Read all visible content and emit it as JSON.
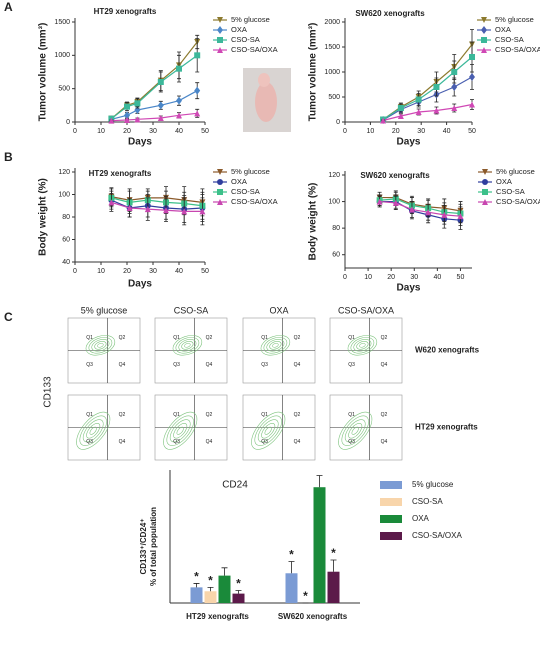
{
  "panel_labels": [
    "A",
    "B",
    "C"
  ],
  "chart_data": [
    {
      "type": "line",
      "title": "HT29 xenografts",
      "xlabel": "Days",
      "ylabel": "Tumor volume (mm³)",
      "xlim": [
        0,
        50
      ],
      "xticks": [
        0,
        10,
        20,
        30,
        40,
        50
      ],
      "ylim": [
        0,
        1500
      ],
      "yticks": [
        0,
        500,
        1000,
        1500
      ],
      "x": [
        14,
        20,
        24,
        33,
        40,
        47
      ],
      "series": [
        {
          "name": "5% glucose",
          "color": "#8c7a2e",
          "marker": "triangle-down",
          "values": [
            50,
            250,
            300,
            620,
            850,
            1200
          ],
          "errors": [
            20,
            50,
            60,
            150,
            200,
            100
          ]
        },
        {
          "name": "OXA",
          "color": "#4a86c8",
          "marker": "diamond",
          "values": [
            40,
            100,
            180,
            250,
            320,
            470
          ],
          "errors": [
            15,
            40,
            50,
            60,
            70,
            120
          ]
        },
        {
          "name": "CSO-SA",
          "color": "#3cb89a",
          "marker": "square",
          "values": [
            50,
            230,
            280,
            600,
            800,
            1000
          ],
          "errors": [
            20,
            60,
            70,
            150,
            200,
            250
          ]
        },
        {
          "name": "CSO-SA/OXA",
          "color": "#d048b5",
          "marker": "triangle",
          "values": [
            20,
            30,
            40,
            60,
            100,
            130
          ],
          "errors": [
            10,
            15,
            20,
            30,
            40,
            60
          ]
        }
      ]
    },
    {
      "type": "line",
      "title": "SW620 xenografts",
      "xlabel": "Days",
      "ylabel": "Tumor volume (mm³)",
      "xlim": [
        0,
        50
      ],
      "xticks": [
        0,
        10,
        20,
        30,
        40,
        50
      ],
      "ylim": [
        0,
        2000
      ],
      "yticks": [
        0,
        500,
        1000,
        1500,
        2000
      ],
      "x": [
        15,
        22,
        29,
        36,
        43,
        50
      ],
      "series": [
        {
          "name": "5% glucose",
          "color": "#8c7a2e",
          "marker": "triangle-down",
          "values": [
            50,
            300,
            500,
            800,
            1100,
            1550
          ],
          "errors": [
            20,
            80,
            120,
            200,
            250,
            300
          ]
        },
        {
          "name": "OXA",
          "color": "#4a5fb0",
          "marker": "diamond",
          "values": [
            40,
            250,
            400,
            550,
            700,
            900
          ],
          "errors": [
            20,
            70,
            100,
            150,
            180,
            250
          ]
        },
        {
          "name": "CSO-SA",
          "color": "#3cb89a",
          "marker": "square",
          "values": [
            50,
            280,
            450,
            700,
            1000,
            1300
          ],
          "errors": [
            20,
            80,
            120,
            180,
            220,
            300
          ]
        },
        {
          "name": "CSO-SA/OXA",
          "color": "#d048b5",
          "marker": "triangle",
          "values": [
            30,
            120,
            200,
            230,
            280,
            350
          ],
          "errors": [
            10,
            40,
            60,
            70,
            80,
            100
          ]
        }
      ]
    },
    {
      "type": "line",
      "title": "HT29 xenografts",
      "xlabel": "Days",
      "ylabel": "Body weight (%)",
      "xlim": [
        0,
        50
      ],
      "xticks": [
        0,
        10,
        20,
        30,
        40,
        50
      ],
      "ylim": [
        40,
        120
      ],
      "yticks": [
        40,
        60,
        80,
        100,
        120
      ],
      "x": [
        14,
        21,
        28,
        35,
        42,
        49
      ],
      "series": [
        {
          "name": "5% glucose",
          "color": "#8b5a2b",
          "marker": "triangle-down",
          "values": [
            98,
            95,
            97,
            97,
            95,
            93
          ],
          "errors": [
            8,
            10,
            8,
            10,
            12,
            12
          ]
        },
        {
          "name": "OXA",
          "color": "#2f3e9e",
          "marker": "circle",
          "values": [
            95,
            88,
            90,
            88,
            87,
            88
          ],
          "errors": [
            8,
            8,
            10,
            10,
            12,
            12
          ]
        },
        {
          "name": "CSO-SA",
          "color": "#3cc08a",
          "marker": "square",
          "values": [
            97,
            93,
            95,
            93,
            92,
            90
          ],
          "errors": [
            8,
            10,
            8,
            10,
            10,
            12
          ]
        },
        {
          "name": "CSO-SA/OXA",
          "color": "#c846b0",
          "marker": "triangle",
          "values": [
            93,
            88,
            87,
            86,
            85,
            85
          ],
          "errors": [
            8,
            8,
            10,
            10,
            12,
            12
          ]
        }
      ]
    },
    {
      "type": "line",
      "title": "SW620 xenografts",
      "xlabel": "Days",
      "ylabel": "Body weight (%)",
      "xlim": [
        0,
        55
      ],
      "xticks": [
        0,
        10,
        20,
        30,
        40,
        50
      ],
      "ylim": [
        50,
        120
      ],
      "yticks": [
        60,
        80,
        100,
        120
      ],
      "x": [
        15,
        22,
        29,
        36,
        43,
        50
      ],
      "series": [
        {
          "name": "5% glucose",
          "color": "#8b5a2b",
          "marker": "triangle-down",
          "values": [
            103,
            103,
            98,
            96,
            95,
            93
          ],
          "errors": [
            4,
            5,
            6,
            6,
            7,
            7
          ]
        },
        {
          "name": "OXA",
          "color": "#2f3e9e",
          "marker": "circle",
          "values": [
            100,
            100,
            93,
            90,
            87,
            86
          ],
          "errors": [
            4,
            5,
            6,
            6,
            7,
            7
          ]
        },
        {
          "name": "CSO-SA",
          "color": "#3cc08a",
          "marker": "square",
          "values": [
            101,
            102,
            97,
            95,
            92,
            91
          ],
          "errors": [
            4,
            5,
            6,
            6,
            7,
            7
          ]
        },
        {
          "name": "CSO-SA/OXA",
          "color": "#c846b0",
          "marker": "triangle",
          "values": [
            100,
            99,
            94,
            92,
            90,
            89
          ],
          "errors": [
            4,
            5,
            6,
            6,
            7,
            7
          ]
        }
      ]
    },
    {
      "type": "bar",
      "ylabel": [
        "CD133⁺/CD24⁺",
        "% of total population"
      ],
      "ylim": [
        0,
        17
      ],
      "categories": [
        "HT29 xenografts",
        "SW620 xenografts"
      ],
      "series": [
        {
          "name": "5% glucose",
          "color": "#7b9bd4",
          "values": [
            2,
            3.8
          ],
          "errors": [
            0.5,
            1.5
          ],
          "annotations": [
            "*",
            "*"
          ]
        },
        {
          "name": "CSO-SA",
          "color": "#f8d5ab",
          "values": [
            1.5,
            0
          ],
          "errors": [
            0.5,
            0
          ],
          "annotations": [
            "*",
            "*"
          ]
        },
        {
          "name": "OXA",
          "color": "#1a8a3a",
          "values": [
            3.5,
            14.8
          ],
          "errors": [
            1,
            1.5
          ],
          "annotations": [
            null,
            null
          ]
        },
        {
          "name": "CSO-SA/OXA",
          "color": "#5c1a4a",
          "values": [
            1.2,
            4
          ],
          "errors": [
            0.4,
            1.5
          ],
          "annotations": [
            "*",
            "*"
          ]
        }
      ]
    }
  ],
  "flow_cytometry": {
    "columns": [
      "5% glucose",
      "CSO-SA",
      "OXA",
      "CSO-SA/OXA"
    ],
    "rows": [
      "W620 xenografts",
      "HT29 xenografts"
    ],
    "quadrants": [
      "Q1",
      "Q2",
      "Q3",
      "Q4"
    ],
    "x_label": "CD24",
    "y_label": "CD133"
  }
}
